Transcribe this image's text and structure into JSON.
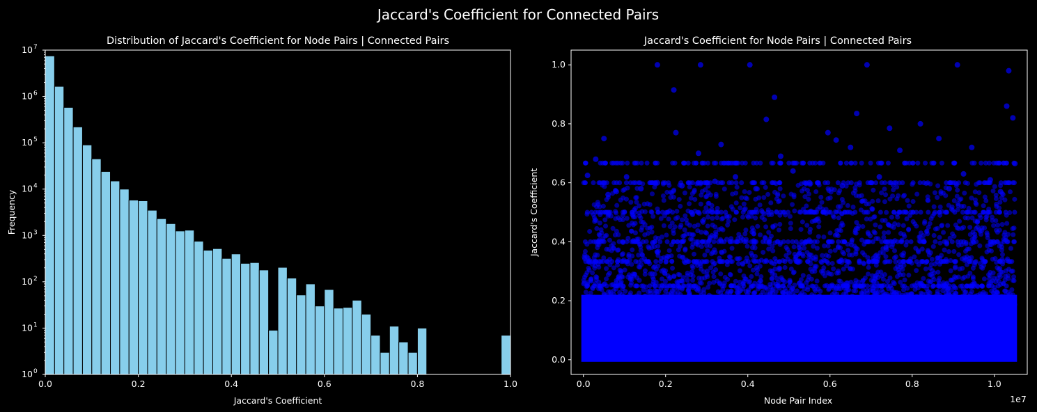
{
  "figure": {
    "suptitle": "Jaccard's Coefficient for Connected Pairs"
  },
  "chart_data": [
    {
      "type": "bar",
      "subtype": "histogram",
      "title": "Distribution of Jaccard's Coefficient for Node Pairs | Connected Pairs",
      "xlabel": "Jaccard's Coefficient",
      "ylabel": "Frequency",
      "xlim": [
        0,
        1
      ],
      "ylim": [
        1,
        10000000
      ],
      "yscale": "log",
      "bar_color": "#87ceeb",
      "edge_color": "#000000",
      "bin_width": 0.02,
      "xticks": [
        "0.0",
        "0.2",
        "0.4",
        "0.6",
        "0.8",
        "1.0"
      ],
      "yticks": [
        "10^0",
        "10^1",
        "10^2",
        "10^3",
        "10^4",
        "10^5",
        "10^6",
        "10^7"
      ],
      "bins_start": [
        0.0,
        0.02,
        0.04,
        0.06,
        0.08,
        0.1,
        0.12,
        0.14,
        0.16,
        0.18,
        0.2,
        0.22,
        0.24,
        0.26,
        0.28,
        0.3,
        0.32,
        0.34,
        0.36,
        0.38,
        0.4,
        0.42,
        0.44,
        0.46,
        0.48,
        0.5,
        0.52,
        0.54,
        0.56,
        0.58,
        0.6,
        0.62,
        0.64,
        0.66,
        0.68,
        0.7,
        0.72,
        0.74,
        0.76,
        0.78,
        0.8,
        0.98
      ],
      "values": [
        7500000,
        1650000,
        580000,
        220000,
        90000,
        45000,
        24000,
        15000,
        10000,
        5800,
        5600,
        3500,
        2300,
        1800,
        1250,
        1300,
        750,
        480,
        520,
        320,
        400,
        250,
        260,
        180,
        9,
        205,
        120,
        52,
        90,
        30,
        68,
        27,
        28,
        40,
        20,
        7,
        3,
        11,
        5,
        3,
        10,
        7
      ]
    },
    {
      "type": "scatter",
      "title": "Jaccard's Coefficient for Node Pairs | Connected Pairs",
      "xlabel": "Node Pair Index",
      "ylabel": "Jaccard's Coefficient",
      "x_offset_label": "1e7",
      "xlim": [
        -300000,
        10800000
      ],
      "ylim": [
        -0.05,
        1.05
      ],
      "xticks": [
        "0.0",
        "0.2",
        "0.4",
        "0.6",
        "0.8",
        "1.0"
      ],
      "yticks": [
        "0.0",
        "0.2",
        "0.4",
        "0.6",
        "0.8",
        "1.0"
      ],
      "point_color": "#0000ff",
      "n_points_approx": 10500000,
      "dense_band": [
        0,
        0.3
      ],
      "outliers": [
        [
          1800000,
          1.0
        ],
        [
          2850000,
          1.0
        ],
        [
          4050000,
          1.0
        ],
        [
          6900000,
          1.0
        ],
        [
          9100000,
          1.0
        ],
        [
          10350000,
          0.98
        ],
        [
          2200000,
          0.915
        ],
        [
          4650000,
          0.89
        ],
        [
          10300000,
          0.86
        ],
        [
          6650000,
          0.835
        ],
        [
          10450000,
          0.82
        ],
        [
          4450000,
          0.815
        ],
        [
          8200000,
          0.8
        ],
        [
          7450000,
          0.785
        ],
        [
          2250000,
          0.77
        ],
        [
          5950000,
          0.77
        ],
        [
          6150000,
          0.745
        ],
        [
          3350000,
          0.73
        ],
        [
          500000,
          0.75
        ],
        [
          8650000,
          0.75
        ],
        [
          9450000,
          0.72
        ],
        [
          6500000,
          0.72
        ],
        [
          2800000,
          0.7
        ],
        [
          7700000,
          0.71
        ],
        [
          300000,
          0.68
        ],
        [
          4800000,
          0.69
        ],
        [
          10500000,
          0.665
        ],
        [
          5100000,
          0.64
        ],
        [
          1050000,
          0.62
        ],
        [
          9250000,
          0.63
        ],
        [
          3700000,
          0.62
        ],
        [
          100000,
          0.625
        ],
        [
          1800000,
          0.6
        ],
        [
          5500000,
          0.6
        ],
        [
          8900000,
          0.58
        ],
        [
          7200000,
          0.62
        ],
        [
          3200000,
          0.605
        ],
        [
          4200000,
          0.58
        ],
        [
          6300000,
          0.59
        ],
        [
          9900000,
          0.61
        ],
        [
          2400000,
          0.59
        ],
        [
          1400000,
          0.58
        ],
        [
          800000,
          0.57
        ],
        [
          600000,
          0.56
        ],
        [
          10150000,
          0.57
        ]
      ]
    }
  ]
}
